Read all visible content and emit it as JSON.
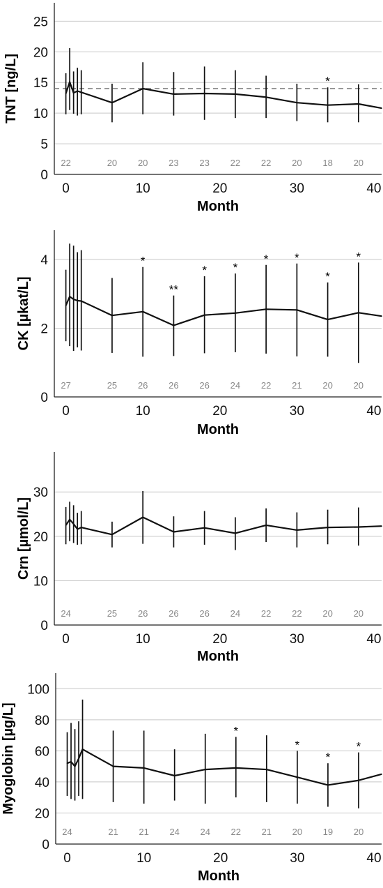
{
  "chart_data": [
    {
      "type": "line",
      "title": "",
      "xlabel": "Month",
      "ylabel": "TNT [ng/L]",
      "xlim": [
        -1.5,
        41
      ],
      "ylim": [
        0,
        28
      ],
      "xticks": [
        "0",
        "10",
        "20",
        "30",
        "40"
      ],
      "yticks": [
        "0",
        "5",
        "10",
        "15",
        "20",
        "25"
      ],
      "grid": true,
      "reference_line": 14,
      "series": [
        {
          "x": [
            0,
            0.5,
            1,
            1.5,
            2,
            6,
            10,
            14,
            18,
            22,
            26,
            30,
            34,
            38,
            41
          ],
          "y": [
            13.2,
            15.1,
            13.3,
            13.6,
            13.4,
            11.7,
            14.0,
            13.1,
            13.2,
            13.1,
            12.6,
            11.7,
            11.3,
            11.5,
            10.8
          ],
          "err_low": [
            9.8,
            10.5,
            9.9,
            9.6,
            9.8,
            8.5,
            9.8,
            9.6,
            8.9,
            9.2,
            9.2,
            8.7,
            8.5,
            8.5,
            null
          ],
          "err_high": [
            16.5,
            20.6,
            16.8,
            17.4,
            17.0,
            14.8,
            18.3,
            16.7,
            17.6,
            17.0,
            16.1,
            14.8,
            14.2,
            14.7,
            null
          ]
        }
      ],
      "sample_sizes": [
        {
          "x": 0,
          "n": "22"
        },
        {
          "x": 6,
          "n": "20"
        },
        {
          "x": 10,
          "n": "20"
        },
        {
          "x": 14,
          "n": "23"
        },
        {
          "x": 18,
          "n": "23"
        },
        {
          "x": 22,
          "n": "22"
        },
        {
          "x": 26,
          "n": "22"
        },
        {
          "x": 30,
          "n": "20"
        },
        {
          "x": 34,
          "n": "18"
        },
        {
          "x": 38,
          "n": "20"
        }
      ],
      "significance": [
        {
          "x": 34,
          "label": "*"
        }
      ]
    },
    {
      "type": "line",
      "title": "",
      "xlabel": "Month",
      "ylabel": "CK [µkat/L]",
      "xlim": [
        -1.5,
        41
      ],
      "ylim": [
        0,
        4.85
      ],
      "xticks": [
        "0",
        "10",
        "20",
        "30",
        "40"
      ],
      "yticks": [
        "0",
        "2",
        "4"
      ],
      "grid": true,
      "series": [
        {
          "x": [
            0,
            0.5,
            1,
            1.5,
            2,
            6,
            10,
            14,
            18,
            22,
            26,
            30,
            34,
            38,
            41
          ],
          "y": [
            2.66,
            2.92,
            2.84,
            2.8,
            2.79,
            2.37,
            2.48,
            2.08,
            2.38,
            2.44,
            2.55,
            2.53,
            2.25,
            2.45,
            2.35
          ],
          "err_low": [
            1.62,
            1.48,
            1.34,
            1.44,
            1.35,
            1.28,
            1.17,
            1.19,
            1.27,
            1.3,
            1.26,
            1.18,
            1.17,
            0.99,
            null
          ],
          "err_high": [
            3.7,
            4.46,
            4.4,
            4.21,
            4.27,
            3.46,
            3.78,
            2.95,
            3.51,
            3.59,
            3.84,
            3.88,
            3.33,
            3.91,
            null
          ]
        }
      ],
      "sample_sizes": [
        {
          "x": 0,
          "n": "27"
        },
        {
          "x": 6,
          "n": "25"
        },
        {
          "x": 10,
          "n": "26"
        },
        {
          "x": 14,
          "n": "26"
        },
        {
          "x": 18,
          "n": "26"
        },
        {
          "x": 22,
          "n": "24"
        },
        {
          "x": 26,
          "n": "22"
        },
        {
          "x": 30,
          "n": "21"
        },
        {
          "x": 34,
          "n": "20"
        },
        {
          "x": 38,
          "n": "20"
        }
      ],
      "significance": [
        {
          "x": 10,
          "label": "*"
        },
        {
          "x": 14,
          "label": "**"
        },
        {
          "x": 18,
          "label": "*"
        },
        {
          "x": 22,
          "label": "*"
        },
        {
          "x": 26,
          "label": "*"
        },
        {
          "x": 30,
          "label": "*"
        },
        {
          "x": 34,
          "label": "*"
        },
        {
          "x": 38,
          "label": "*"
        }
      ]
    },
    {
      "type": "line",
      "title": "",
      "xlabel": "Month",
      "ylabel": "Crn [µmol/L]",
      "xlim": [
        -1.5,
        41
      ],
      "ylim": [
        0,
        39
      ],
      "xticks": [
        "0",
        "10",
        "20",
        "30",
        "40"
      ],
      "yticks": [
        "0",
        "10",
        "20",
        "30"
      ],
      "grid": true,
      "series": [
        {
          "x": [
            0,
            0.5,
            1,
            1.5,
            2,
            6,
            10,
            14,
            18,
            22,
            26,
            30,
            34,
            38,
            41
          ],
          "y": [
            22.5,
            23.8,
            22.8,
            21.6,
            22.0,
            20.4,
            24.3,
            21.0,
            21.9,
            20.7,
            22.5,
            21.4,
            22.0,
            22.1,
            22.3
          ],
          "err_low": [
            18.2,
            18.9,
            18.5,
            18.1,
            18.2,
            17.5,
            18.3,
            17.5,
            18.1,
            16.9,
            18.7,
            17.5,
            18.2,
            17.9,
            null
          ],
          "err_high": [
            26.6,
            27.8,
            27.0,
            25.3,
            25.7,
            23.3,
            30.2,
            24.5,
            25.7,
            24.3,
            26.3,
            25.4,
            26.0,
            26.5,
            null
          ]
        }
      ],
      "sample_sizes": [
        {
          "x": 0,
          "n": "24"
        },
        {
          "x": 6,
          "n": "25"
        },
        {
          "x": 10,
          "n": "26"
        },
        {
          "x": 14,
          "n": "26"
        },
        {
          "x": 18,
          "n": "26"
        },
        {
          "x": 22,
          "n": "24"
        },
        {
          "x": 26,
          "n": "22"
        },
        {
          "x": 30,
          "n": "22"
        },
        {
          "x": 34,
          "n": "20"
        },
        {
          "x": 38,
          "n": "20"
        }
      ],
      "significance": []
    },
    {
      "type": "line",
      "title": "",
      "xlabel": "Month",
      "ylabel": "Myoglobin [µg/L]",
      "xlim": [
        -1.5,
        41
      ],
      "ylim": [
        0,
        110
      ],
      "xticks": [
        "0",
        "10",
        "20",
        "30",
        "40"
      ],
      "yticks": [
        "0",
        "20",
        "40",
        "60",
        "80",
        "100"
      ],
      "grid": true,
      "series": [
        {
          "x": [
            0,
            0.5,
            1,
            1.5,
            2,
            6,
            10,
            14,
            18,
            22,
            26,
            30,
            34,
            38,
            41
          ],
          "y": [
            52,
            53,
            50,
            55,
            61,
            50,
            49,
            44,
            48,
            49,
            48,
            43,
            38,
            41,
            45
          ],
          "err_low": [
            31,
            29,
            28,
            31,
            29,
            27,
            26,
            28,
            26,
            30,
            27,
            26,
            24,
            23,
            null
          ],
          "err_high": [
            72,
            78,
            74,
            79,
            93,
            73,
            73,
            61,
            71,
            69,
            70,
            60,
            52,
            59,
            null
          ]
        }
      ],
      "sample_sizes": [
        {
          "x": 0,
          "n": "24"
        },
        {
          "x": 6,
          "n": "21"
        },
        {
          "x": 10,
          "n": "21"
        },
        {
          "x": 14,
          "n": "24"
        },
        {
          "x": 18,
          "n": "24"
        },
        {
          "x": 22,
          "n": "22"
        },
        {
          "x": 26,
          "n": "21"
        },
        {
          "x": 30,
          "n": "20"
        },
        {
          "x": 34,
          "n": "19"
        },
        {
          "x": 38,
          "n": "20"
        }
      ],
      "significance": [
        {
          "x": 22,
          "label": "*"
        },
        {
          "x": 30,
          "label": "*"
        },
        {
          "x": 34,
          "label": "*"
        },
        {
          "x": 38,
          "label": "*"
        }
      ]
    }
  ]
}
